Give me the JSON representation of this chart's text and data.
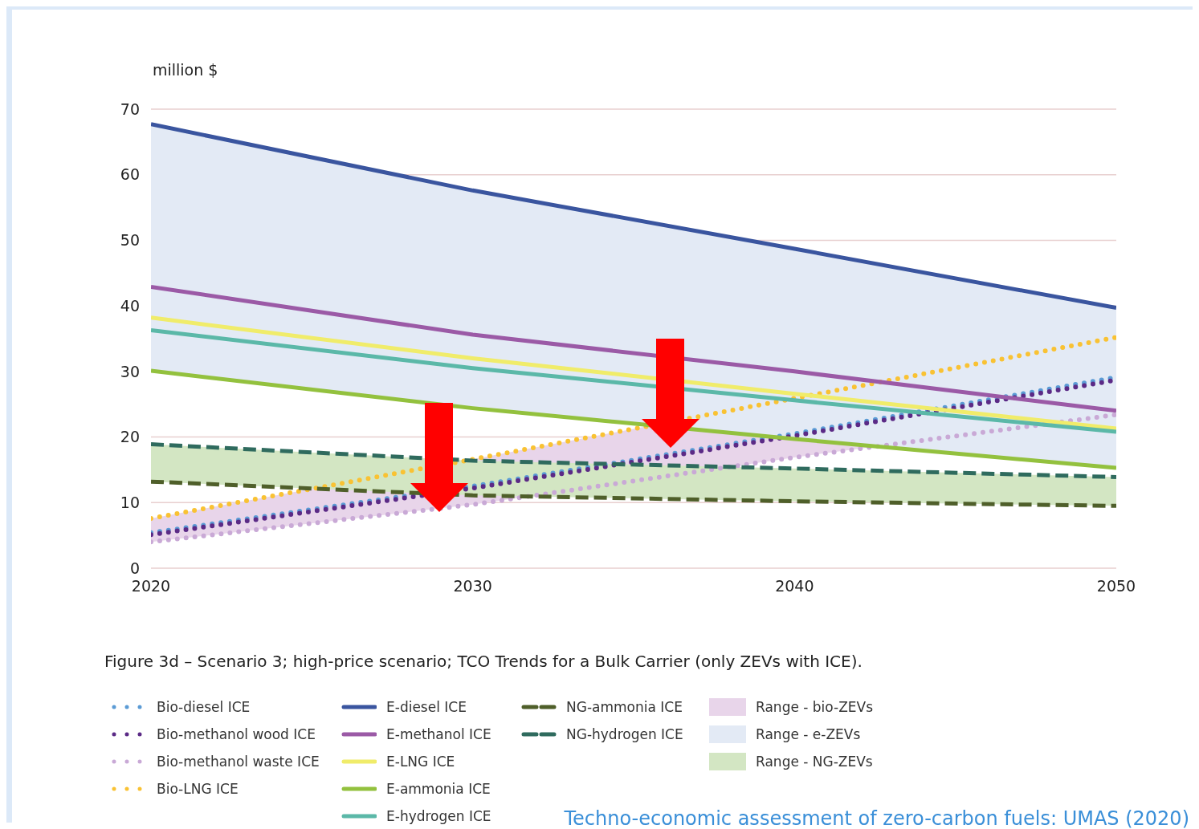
{
  "chart_data": {
    "type": "line",
    "ylabel": "million $",
    "x": [
      2020,
      2030,
      2040,
      2050
    ],
    "xlim": [
      2020,
      2050
    ],
    "xticks": [
      2020,
      2030,
      2040,
      2050
    ],
    "ylim": [
      0,
      70
    ],
    "yticks": [
      0,
      10,
      20,
      30,
      40,
      50,
      60,
      70
    ],
    "grid": "y",
    "legend": "bottom",
    "annotations": [
      "Figure 3d – Scenario 3; high-price scenario; TCO Trends for a Bulk Carrier (only ZEVs with ICE).",
      "Techno-economic assessment of zero-carbon fuels: UMAS (2020)"
    ],
    "series": [
      {
        "name": "Range - bio-ZEVs",
        "type": "area",
        "color": "#e8d5ea",
        "values": [
          null,
          null,
          null,
          null
        ],
        "lower": [
          4.0,
          9.7,
          16.9,
          23.4
        ],
        "upper": [
          7.6,
          16.6,
          25.9,
          35.2
        ]
      },
      {
        "name": "Range - e-ZEVs",
        "type": "area",
        "color": "#e3eaf5",
        "values": [
          null,
          null,
          null,
          null
        ],
        "lower": [
          30.1,
          24.4,
          19.7,
          15.3
        ],
        "upper": [
          67.7,
          57.6,
          48.7,
          39.7
        ]
      },
      {
        "name": "Range - NG-ZEVs",
        "type": "area",
        "color": "#d3e6c3",
        "values": [
          null,
          null,
          null,
          null
        ],
        "lower": [
          13.2,
          11.1,
          10.2,
          9.5
        ],
        "upper": [
          18.9,
          16.4,
          15.2,
          13.9
        ]
      },
      {
        "name": "Bio-diesel ICE",
        "color": "#5b9bd5",
        "line_style": "dotted",
        "values": [
          5.4,
          12.5,
          20.5,
          29.1
        ]
      },
      {
        "name": "Bio-methanol wood ICE",
        "color": "#5b2a86",
        "line_style": "dotted",
        "values": [
          5.1,
          12.2,
          20.2,
          28.7
        ]
      },
      {
        "name": "Bio-methanol waste ICE",
        "color": "#c9a9d6",
        "line_style": "dotted",
        "values": [
          4.0,
          9.7,
          16.9,
          23.4
        ]
      },
      {
        "name": "Bio-LNG ICE",
        "color": "#f9c233",
        "line_style": "dotted",
        "values": [
          7.6,
          16.6,
          25.9,
          35.2
        ]
      },
      {
        "name": "E-diesel ICE",
        "color": "#3a559f",
        "line_style": "solid",
        "values": [
          67.7,
          57.6,
          48.7,
          39.7
        ]
      },
      {
        "name": "E-methanol ICE",
        "color": "#9b5aa6",
        "line_style": "solid",
        "values": [
          42.9,
          35.6,
          30.0,
          24.0
        ]
      },
      {
        "name": "E-LNG ICE",
        "color": "#f0ec6a",
        "line_style": "solid",
        "values": [
          38.2,
          32.0,
          26.6,
          21.3
        ]
      },
      {
        "name": "E-ammonia ICE",
        "color": "#93c13e",
        "line_style": "solid",
        "values": [
          30.1,
          24.4,
          19.7,
          15.3
        ]
      },
      {
        "name": "E-hydrogen ICE",
        "color": "#5bb8a8",
        "line_style": "solid",
        "values": [
          36.3,
          30.5,
          25.6,
          20.8
        ]
      },
      {
        "name": "NG-ammonia ICE",
        "color": "#4f5f2a",
        "line_style": "dashed",
        "values": [
          13.2,
          11.1,
          10.2,
          9.5
        ]
      },
      {
        "name": "NG-hydrogen ICE",
        "color": "#2f6b5e",
        "line_style": "dashed",
        "values": [
          18.9,
          16.4,
          15.2,
          13.9
        ]
      }
    ]
  }
}
